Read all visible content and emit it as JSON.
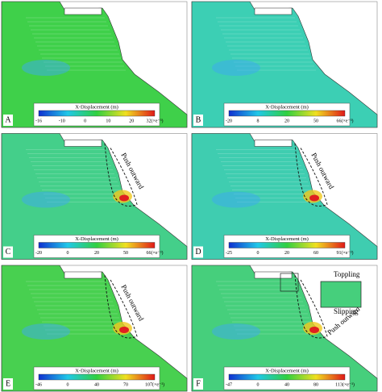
{
  "panels": [
    {
      "label": "A",
      "colorbar_title": "X-Displacement (m)",
      "ticks": [
        "-16",
        "-10",
        "0",
        "10",
        "20",
        "32(×e⁻³)"
      ],
      "annotations": []
    },
    {
      "label": "B",
      "colorbar_title": "X-Displacement (m)",
      "ticks": [
        "-20",
        "8",
        "20",
        "50",
        "66(×e⁻³)"
      ],
      "annotations": []
    },
    {
      "label": "C",
      "colorbar_title": "X-Displacement (m)",
      "ticks": [
        "-20",
        "0",
        "20",
        "50",
        "66(×e⁻³)"
      ],
      "annotations": [
        "Push outward"
      ]
    },
    {
      "label": "D",
      "colorbar_title": "X-Displacement (m)",
      "ticks": [
        "-25",
        "0",
        "20",
        "60",
        "91(×e⁻³)"
      ],
      "annotations": [
        "Push outward"
      ]
    },
    {
      "label": "E",
      "colorbar_title": "X-Displacement (m)",
      "ticks": [
        "-46",
        "0",
        "40",
        "70",
        "107(×e⁻³)"
      ],
      "annotations": [
        "Push outward"
      ]
    },
    {
      "label": "F",
      "colorbar_title": "X-Displacement (m)",
      "ticks": [
        "-47",
        "0",
        "40",
        "80",
        "113(×e⁻³)"
      ],
      "annotations": [
        "Push outward",
        "Toppling",
        "Slipping"
      ]
    }
  ]
}
